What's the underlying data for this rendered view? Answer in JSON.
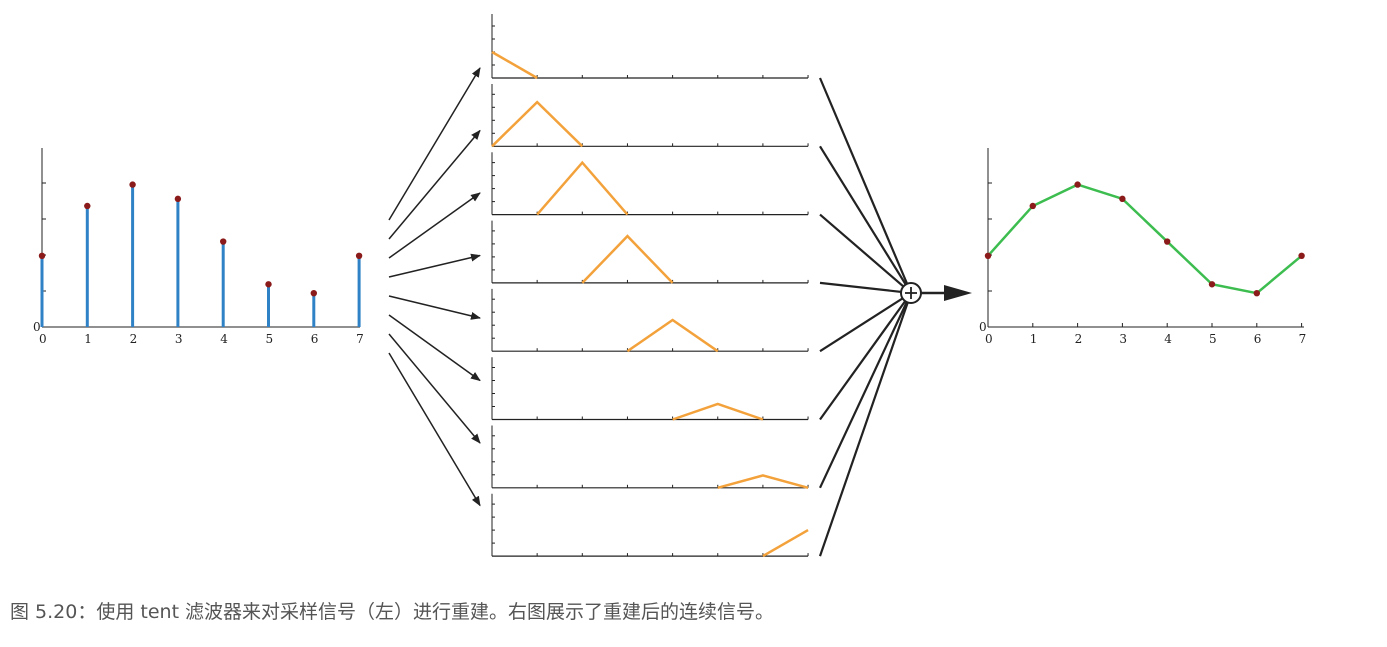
{
  "caption": "图 5.20：使用 tent 滤波器来对采样信号（左）进行重建。右图展示了重建后的连续信号。",
  "colors": {
    "stem": "#2f82c6",
    "dot": "#8b1a1a",
    "tent": "#f3a23b",
    "reconstruction": "#3dbd4f",
    "axis": "#222222"
  },
  "chart_data": [
    {
      "type": "stem",
      "x": [
        0,
        1,
        2,
        3,
        4,
        5,
        6,
        7
      ],
      "values": [
        0.4,
        0.68,
        0.8,
        0.72,
        0.48,
        0.24,
        0.19,
        0.4
      ],
      "xtick_labels": [
        "0",
        "1",
        "2",
        "3",
        "4",
        "5",
        "6",
        "7"
      ],
      "origin_label": "0"
    },
    {
      "type": "line",
      "x": [
        0,
        1,
        2,
        3,
        4,
        5,
        6,
        7
      ],
      "values": [
        0.4,
        0.68,
        0.8,
        0.72,
        0.48,
        0.24,
        0.19,
        0.4
      ],
      "xtick_labels": [
        "0",
        "1",
        "2",
        "3",
        "4",
        "5",
        "6",
        "7"
      ],
      "origin_label": "0"
    }
  ]
}
